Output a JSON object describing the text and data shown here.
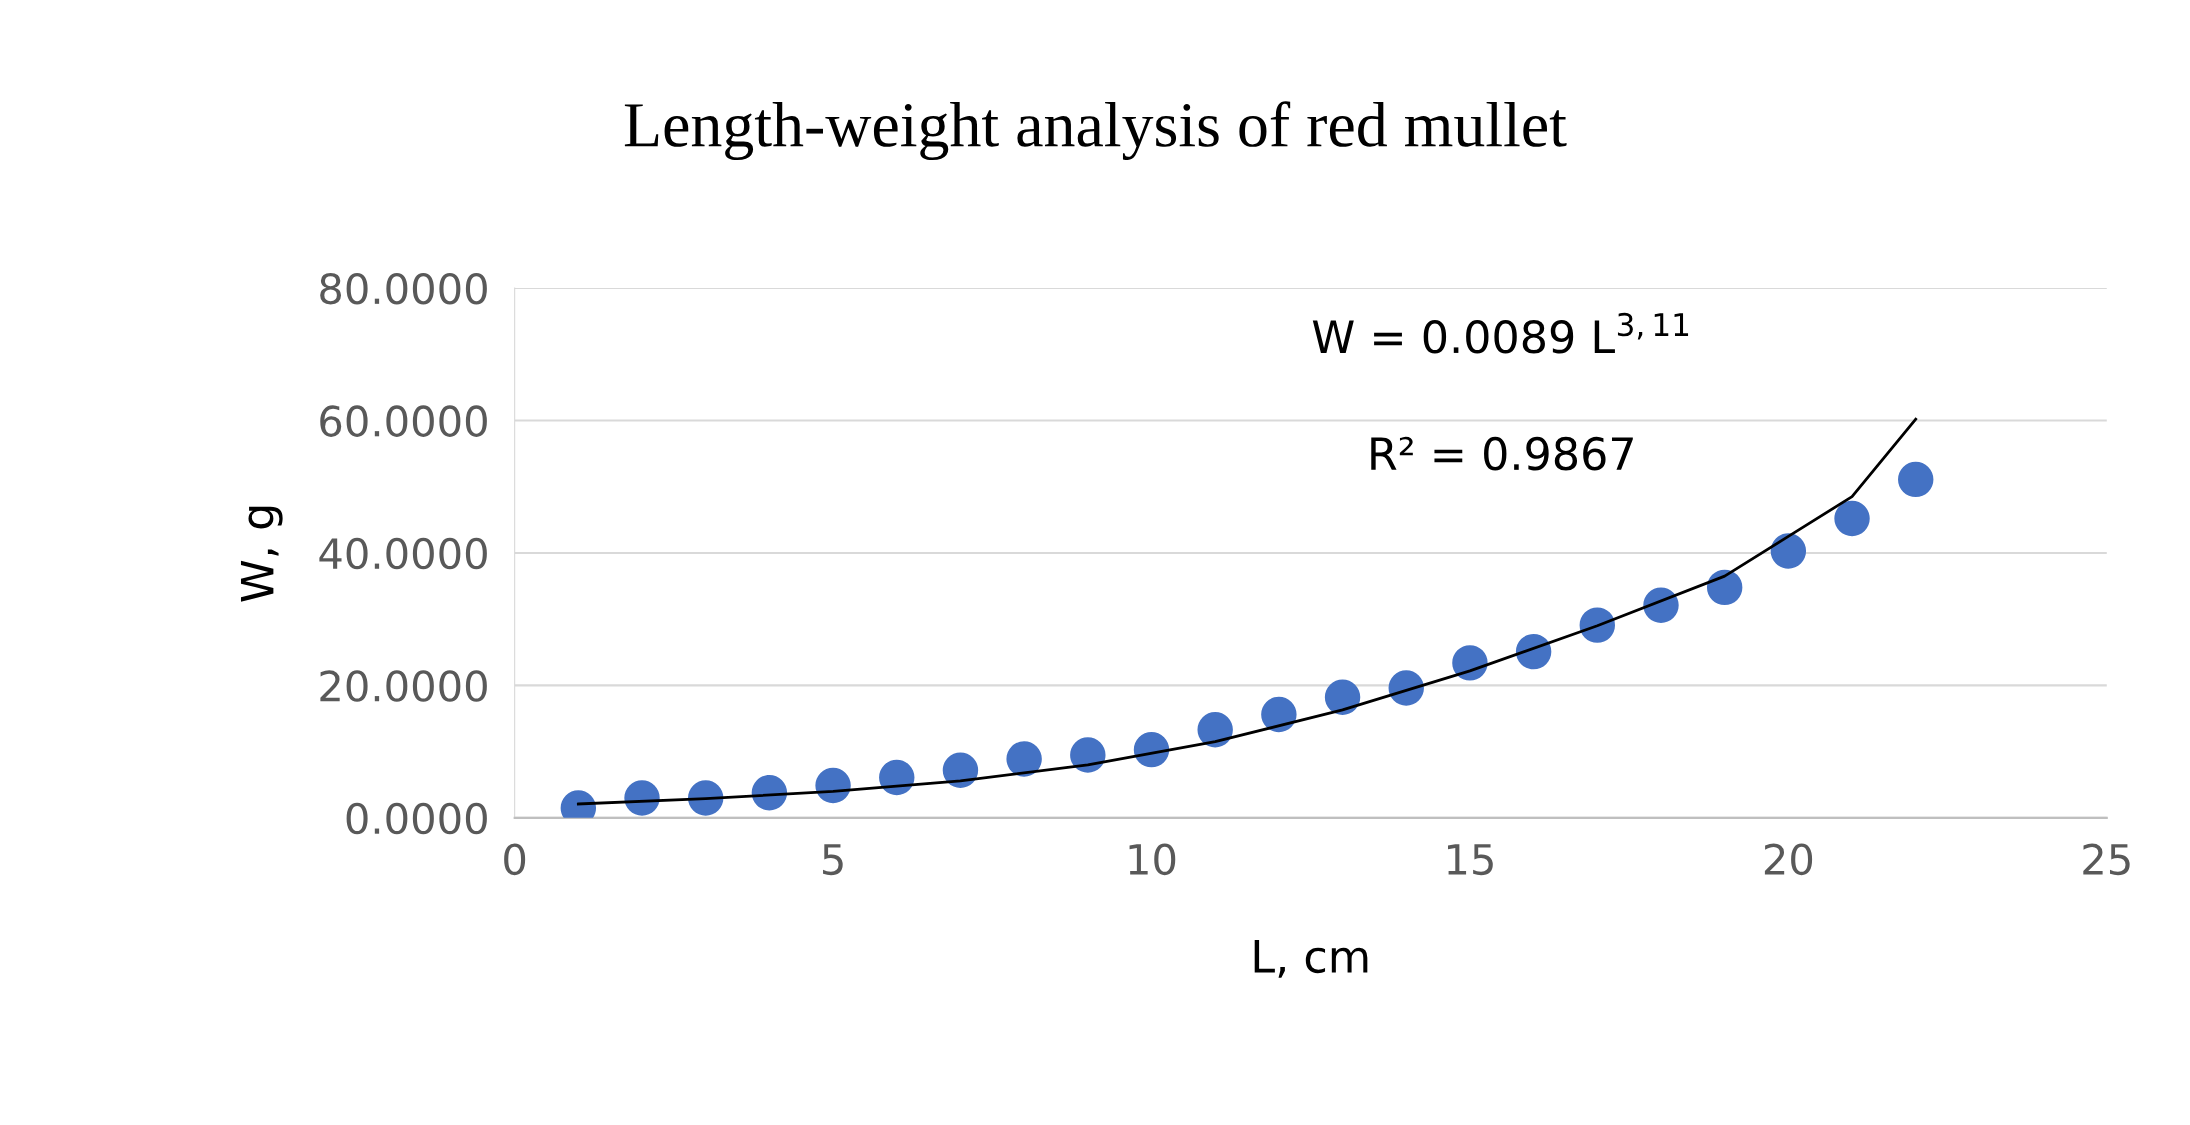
{
  "chart_data": {
    "type": "scatter",
    "title": "Length-weight analysis of red mullet",
    "xlabel": "L, cm",
    "ylabel": "W, g",
    "xlim": [
      0,
      25
    ],
    "xticks": [
      0,
      5,
      10,
      15,
      20,
      25
    ],
    "ylim": [
      0,
      80
    ],
    "yticks": [
      {
        "value": 0,
        "label": "0.0000"
      },
      {
        "value": 20,
        "label": "20.0000"
      },
      {
        "value": 40,
        "label": "40.0000"
      },
      {
        "value": 60,
        "label": "60.0000"
      },
      {
        "value": 80,
        "label": "80.0000"
      }
    ],
    "grid": "y",
    "marker": "circle",
    "legend": false,
    "annotations": [
      "W = 0.0089 L$^{3,11}$",
      "R² = 0.9867"
    ],
    "series": [
      {
        "color": "#4472c4",
        "x": [
          1,
          2,
          3,
          4,
          5,
          6,
          7,
          8,
          9,
          10,
          11,
          12,
          13,
          14,
          15,
          16,
          17,
          18,
          19,
          20,
          21,
          22
        ],
        "values": [
          1.5,
          3,
          3,
          3.8,
          4.9,
          6.1,
          7.2,
          8.9,
          9.5,
          10.3,
          13.3,
          15.6,
          18.2,
          19.6,
          23.4,
          25.1,
          29.1,
          32.1,
          34.8,
          40.3,
          45.2,
          51.1
        ]
      },
      {
        "type": "line",
        "color": "#000000",
        "line_style": "solid",
        "marker": "none",
        "x": [
          1,
          3,
          5,
          7,
          9,
          11,
          13,
          15,
          17,
          19,
          20,
          21,
          22
        ],
        "values": [
          2.1,
          2.9,
          4.0,
          5.6,
          8.0,
          11.5,
          16.3,
          22.2,
          29.0,
          36.5,
          42.5,
          48.5,
          60.2
        ]
      }
    ]
  }
}
